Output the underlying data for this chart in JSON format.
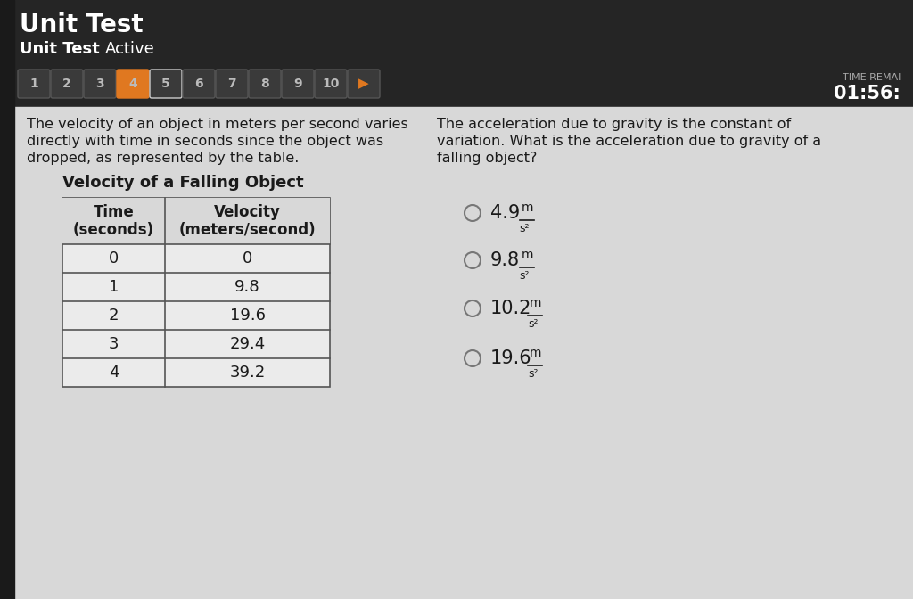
{
  "header_bg": "#252525",
  "header_title": "Unit Test",
  "header_subtitle": "Unit Test",
  "header_subtitle2": "Active",
  "header_title_color": "#ffffff",
  "nav_buttons": [
    "1",
    "2",
    "3",
    "4",
    "5",
    "6",
    "7",
    "8",
    "9",
    "10"
  ],
  "nav_active_btn": "4",
  "nav_hover_btn": "5",
  "nav_active_color": "#e07820",
  "nav_btn_color": "#3a3a3a",
  "nav_btn_text_color": "#bbbbbb",
  "time_label": "TIME REMAI",
  "time_value": "01:56:",
  "content_bg": "#d8d8d8",
  "left_text_line1": "The velocity of an object in meters per second varies",
  "left_text_line2": "directly with time in seconds since the object was",
  "left_text_line3": "dropped, as represented by the table.",
  "right_text_line1": "The acceleration due to gravity is the constant of",
  "right_text_line2": "variation. What is the acceleration due to gravity of a",
  "right_text_line3": "falling object?",
  "table_title": "Velocity of a Falling Object",
  "table_col1_header": "Time\n(seconds)",
  "table_col2_header": "Velocity\n(meters/second)",
  "table_data": [
    [
      0,
      0
    ],
    [
      1,
      9.8
    ],
    [
      2,
      19.6
    ],
    [
      3,
      29.4
    ],
    [
      4,
      39.2
    ]
  ],
  "choices": [
    {
      "value": "4.9",
      "circle_filled": false
    },
    {
      "value": "9.8",
      "circle_filled": false
    },
    {
      "value": "10.2",
      "circle_filled": false
    },
    {
      "value": "19.6",
      "circle_filled": false
    }
  ],
  "content_text_color": "#1a1a1a",
  "table_border_color": "#555555",
  "choice_circle_color": "#777777"
}
